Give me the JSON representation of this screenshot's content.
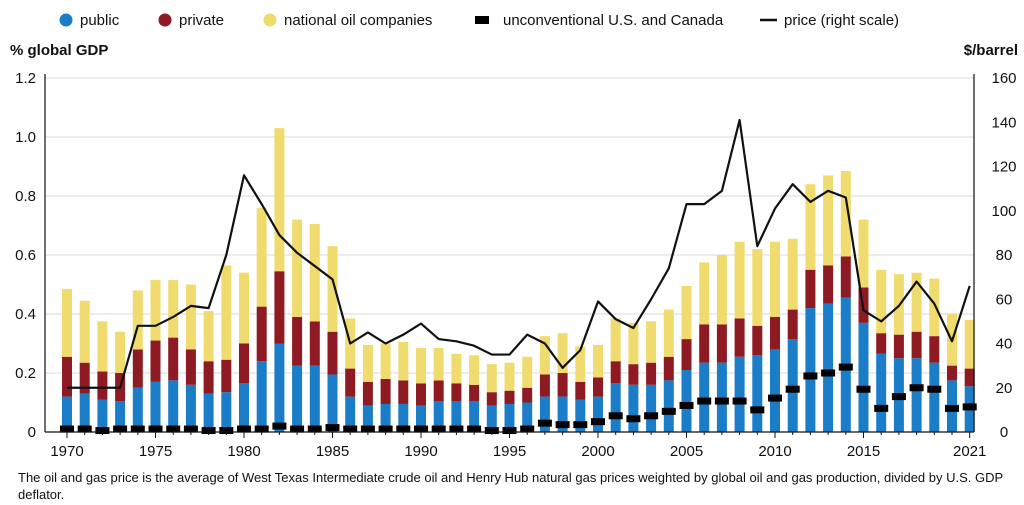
{
  "chart_data": {
    "type": "bar",
    "stacked": true,
    "x": [
      1970,
      1971,
      1972,
      1973,
      1974,
      1975,
      1976,
      1977,
      1978,
      1979,
      1980,
      1981,
      1982,
      1983,
      1984,
      1985,
      1986,
      1987,
      1988,
      1989,
      1990,
      1991,
      1992,
      1993,
      1994,
      1995,
      1996,
      1997,
      1998,
      1999,
      2000,
      2001,
      2002,
      2003,
      2004,
      2005,
      2006,
      2007,
      2008,
      2009,
      2010,
      2011,
      2012,
      2013,
      2014,
      2015,
      2016,
      2017,
      2018,
      2019,
      2020,
      2021
    ],
    "x_tick_labels": [
      "1970",
      "1975",
      "1980",
      "1985",
      "1990",
      "1995",
      "2000",
      "2005",
      "2010",
      "2015",
      "2021"
    ],
    "x_tick_values": [
      1970,
      1975,
      1980,
      1985,
      1990,
      1995,
      2000,
      2005,
      2010,
      2015,
      2021
    ],
    "series": [
      {
        "name": "public",
        "color": "#1b7cc7",
        "values": [
          0.12,
          0.13,
          0.11,
          0.105,
          0.15,
          0.17,
          0.175,
          0.16,
          0.13,
          0.135,
          0.165,
          0.24,
          0.3,
          0.225,
          0.225,
          0.195,
          0.12,
          0.09,
          0.095,
          0.095,
          0.09,
          0.105,
          0.105,
          0.105,
          0.09,
          0.095,
          0.1,
          0.12,
          0.12,
          0.11,
          0.12,
          0.165,
          0.16,
          0.16,
          0.175,
          0.21,
          0.235,
          0.235,
          0.255,
          0.26,
          0.28,
          0.315,
          0.42,
          0.435,
          0.455,
          0.37,
          0.265,
          0.25,
          0.25,
          0.235,
          0.175,
          0.155
        ]
      },
      {
        "name": "private",
        "color": "#8e1b24",
        "values": [
          0.135,
          0.105,
          0.095,
          0.095,
          0.13,
          0.14,
          0.145,
          0.12,
          0.11,
          0.11,
          0.135,
          0.185,
          0.245,
          0.165,
          0.15,
          0.145,
          0.095,
          0.08,
          0.085,
          0.08,
          0.075,
          0.07,
          0.06,
          0.055,
          0.045,
          0.045,
          0.05,
          0.075,
          0.08,
          0.06,
          0.065,
          0.075,
          0.07,
          0.075,
          0.08,
          0.105,
          0.13,
          0.13,
          0.13,
          0.1,
          0.11,
          0.1,
          0.13,
          0.13,
          0.14,
          0.12,
          0.07,
          0.08,
          0.09,
          0.09,
          0.05,
          0.06
        ]
      },
      {
        "name": "national oil companies",
        "color": "#f0dc6e",
        "values": [
          0.23,
          0.21,
          0.17,
          0.14,
          0.2,
          0.205,
          0.195,
          0.22,
          0.17,
          0.32,
          0.24,
          0.335,
          0.485,
          0.33,
          0.33,
          0.29,
          0.17,
          0.125,
          0.12,
          0.13,
          0.12,
          0.11,
          0.1,
          0.1,
          0.095,
          0.095,
          0.105,
          0.13,
          0.135,
          0.12,
          0.11,
          0.145,
          0.14,
          0.14,
          0.16,
          0.18,
          0.21,
          0.235,
          0.26,
          0.26,
          0.255,
          0.24,
          0.29,
          0.305,
          0.29,
          0.23,
          0.215,
          0.205,
          0.2,
          0.195,
          0.175,
          0.165
        ]
      },
      {
        "name": "unconventional U.S. and Canada",
        "color": "#000000",
        "marker": "dash",
        "values": [
          0.01,
          0.01,
          0.005,
          0.01,
          0.01,
          0.01,
          0.01,
          0.01,
          0.005,
          0.005,
          0.01,
          0.01,
          0.02,
          0.01,
          0.01,
          0.015,
          0.01,
          0.01,
          0.01,
          0.01,
          0.01,
          0.01,
          0.01,
          0.01,
          0.005,
          0.005,
          0.01,
          0.03,
          0.025,
          0.025,
          0.035,
          0.055,
          0.045,
          0.055,
          0.07,
          0.09,
          0.105,
          0.105,
          0.105,
          0.075,
          0.115,
          0.145,
          0.19,
          0.2,
          0.22,
          0.145,
          0.08,
          0.12,
          0.15,
          0.145,
          0.08,
          0.085
        ]
      },
      {
        "name": "price (right scale)",
        "color": "#111111",
        "type": "line",
        "axis": "right",
        "values": [
          20,
          20,
          20,
          20,
          48,
          48,
          52,
          57,
          56,
          80,
          116,
          103,
          89,
          81,
          75,
          69,
          40,
          45,
          40,
          44,
          49,
          42,
          41,
          39,
          35,
          35,
          44,
          40,
          29,
          37,
          59,
          51,
          47,
          60,
          74,
          103,
          103,
          109,
          141,
          84,
          101,
          112,
          104,
          109,
          106,
          55,
          50,
          57,
          68,
          58,
          41,
          66
        ]
      }
    ],
    "ylabel": "% global GDP",
    "ylabel_right": "$/barrel",
    "ylim": [
      0,
      1.2
    ],
    "ylim_right": [
      0,
      160
    ],
    "yticks": [
      "0",
      "0.2",
      "0.4",
      "0.6",
      "0.8",
      "1.0",
      "1.2"
    ],
    "yticks_right": [
      "0",
      "20",
      "40",
      "60",
      "80",
      "100",
      "120",
      "140",
      "160"
    ],
    "grid": true,
    "legend_position": "top"
  },
  "footnote": "The oil and gas price is the average of West Texas Intermediate crude oil and Henry Hub natural gas prices weighted by global oil and gas production, divided by U.S. GDP deflator."
}
